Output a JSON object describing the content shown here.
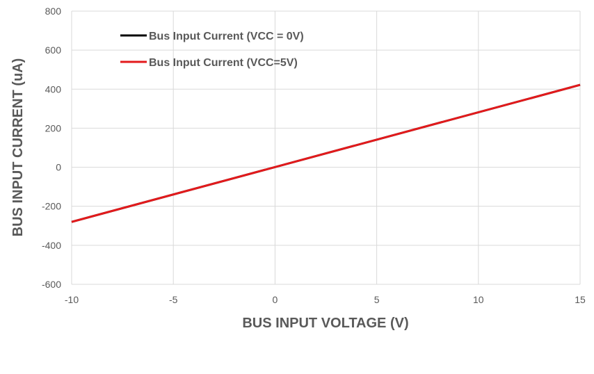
{
  "chart_data": {
    "type": "line",
    "title": "",
    "xlabel": "BUS INPUT VOLTAGE (V)",
    "ylabel": "BUS INPUT CURRENT (uA)",
    "xlim": [
      -10,
      15
    ],
    "ylim": [
      -600,
      800
    ],
    "xticks": [
      -10,
      -5,
      0,
      5,
      10,
      15
    ],
    "yticks": [
      -600,
      -400,
      -200,
      0,
      200,
      400,
      600,
      800
    ],
    "grid": true,
    "legend_position": "top-left",
    "series": [
      {
        "name": "Bus Input Current (VCC = 0V)",
        "color": "#000000",
        "x": [
          -10,
          15
        ],
        "y": [
          -280,
          422
        ]
      },
      {
        "name": "Bus Input Current (VCC=5V)",
        "color": "#e31a1c",
        "x": [
          -10,
          15
        ],
        "y": [
          -280,
          422
        ]
      }
    ]
  }
}
